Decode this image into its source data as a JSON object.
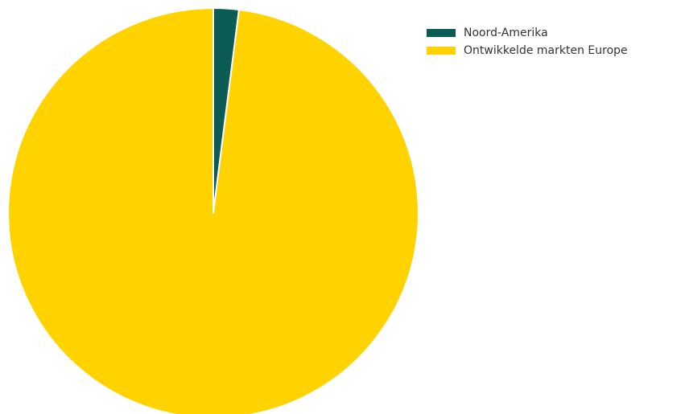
{
  "chart_data": {
    "type": "pie",
    "title": "",
    "start_angle_deg": 0,
    "direction": "clockwise",
    "slices": [
      {
        "label": "Noord-Amerika",
        "value": 2.0,
        "color": "#0b5c55"
      },
      {
        "label": "Ontwikkelde markten Europe",
        "value": 98.0,
        "color": "#ffd200"
      }
    ],
    "slice_border_color": "#ffffff",
    "legend_position": "top-right"
  }
}
